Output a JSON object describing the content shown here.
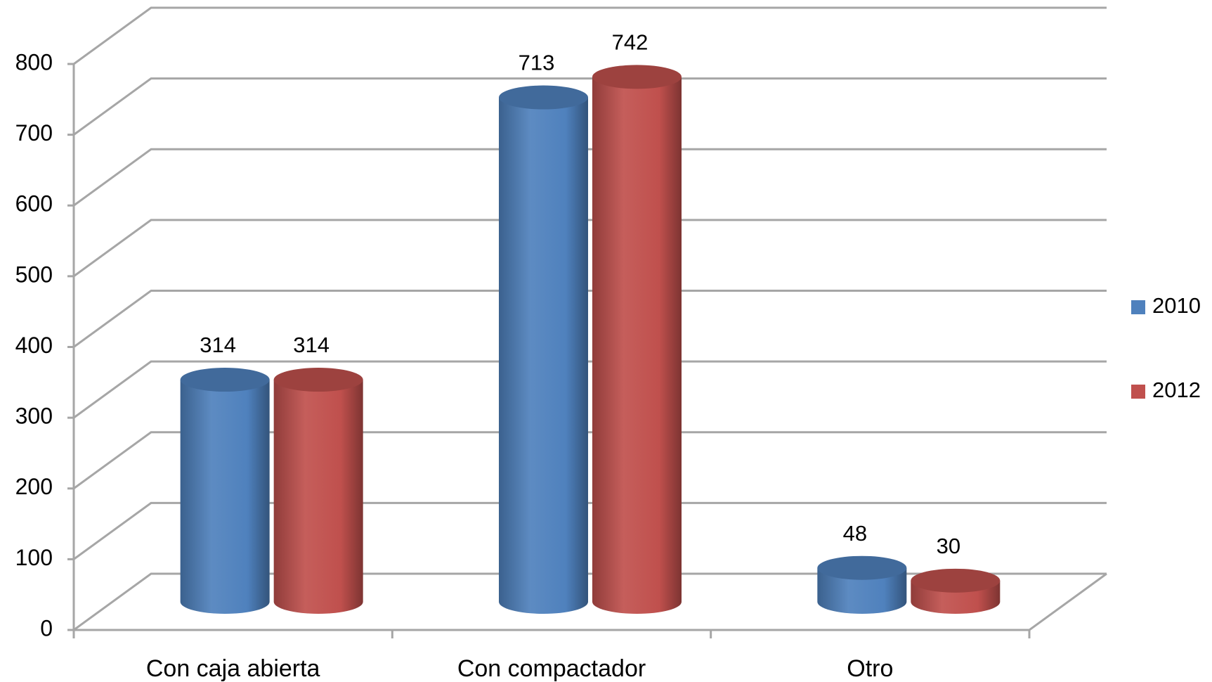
{
  "chart_data": {
    "type": "bar3d",
    "categories": [
      "Con caja abierta",
      "Con compactador",
      "Otro"
    ],
    "series": [
      {
        "name": "2010",
        "color": "#4f81bd",
        "values": [
          314,
          713,
          48
        ]
      },
      {
        "name": "2012",
        "color": "#c0504d",
        "values": [
          314,
          742,
          30
        ]
      }
    ],
    "ylim": [
      0,
      800
    ],
    "yticks": [
      0,
      100,
      200,
      300,
      400,
      500,
      600,
      700,
      800
    ],
    "grid": true,
    "legend": "right"
  }
}
